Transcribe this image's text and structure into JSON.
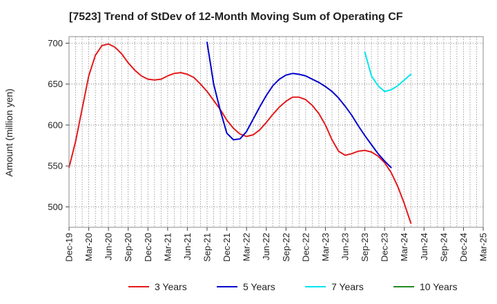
{
  "chart_data": {
    "type": "line",
    "title": "[7523]  Trend of StDev of 12-Month Moving Sum of Operating CF",
    "ylabel": "Amount (million yen)",
    "xlabel": "",
    "ylim": [
      475,
      708
    ],
    "yticks": [
      500,
      550,
      600,
      650,
      700
    ],
    "x_tick_labels": [
      "Dec-19",
      "Mar-20",
      "Jun-20",
      "Sep-20",
      "Dec-20",
      "Mar-21",
      "Jun-21",
      "Sep-21",
      "Dec-21",
      "Mar-22",
      "Jun-22",
      "Sep-22",
      "Dec-22",
      "Mar-23",
      "Jun-23",
      "Sep-23",
      "Dec-23",
      "Mar-24",
      "Jun-24",
      "Sep-24",
      "Dec-24",
      "Mar-25"
    ],
    "x_start": "2019-12",
    "x_end": "2025-03",
    "grid": true,
    "legend_position": "bottom",
    "series": [
      {
        "name": "3 Years",
        "color": "#e31a1c",
        "start": "2019-12",
        "values": [
          548,
          580,
          620,
          660,
          685,
          697,
          699,
          695,
          687,
          676,
          667,
          660,
          656,
          655,
          656,
          660,
          663,
          664,
          662,
          658,
          650,
          641,
          630,
          619,
          606,
          596,
          589,
          586,
          588,
          594,
          603,
          613,
          622,
          629,
          634,
          634,
          631,
          624,
          614,
          600,
          582,
          568,
          563,
          565,
          568,
          569,
          567,
          562,
          554,
          542,
          525,
          504,
          480
        ]
      },
      {
        "name": "5 Years",
        "color": "#0000cc",
        "start": "2021-09",
        "values": [
          701,
          650,
          618,
          590,
          582,
          583,
          592,
          607,
          622,
          636,
          648,
          656,
          661,
          663,
          662,
          660,
          656,
          652,
          647,
          641,
          633,
          623,
          612,
          599,
          587,
          576,
          565,
          556,
          548
        ]
      },
      {
        "name": "7 Years",
        "color": "#00e5ee",
        "start": "2023-09",
        "values": [
          689,
          660,
          648,
          641,
          643,
          648,
          655,
          662
        ]
      },
      {
        "name": "10 Years",
        "color": "#228b22",
        "start": "2024-03",
        "values": []
      }
    ]
  }
}
